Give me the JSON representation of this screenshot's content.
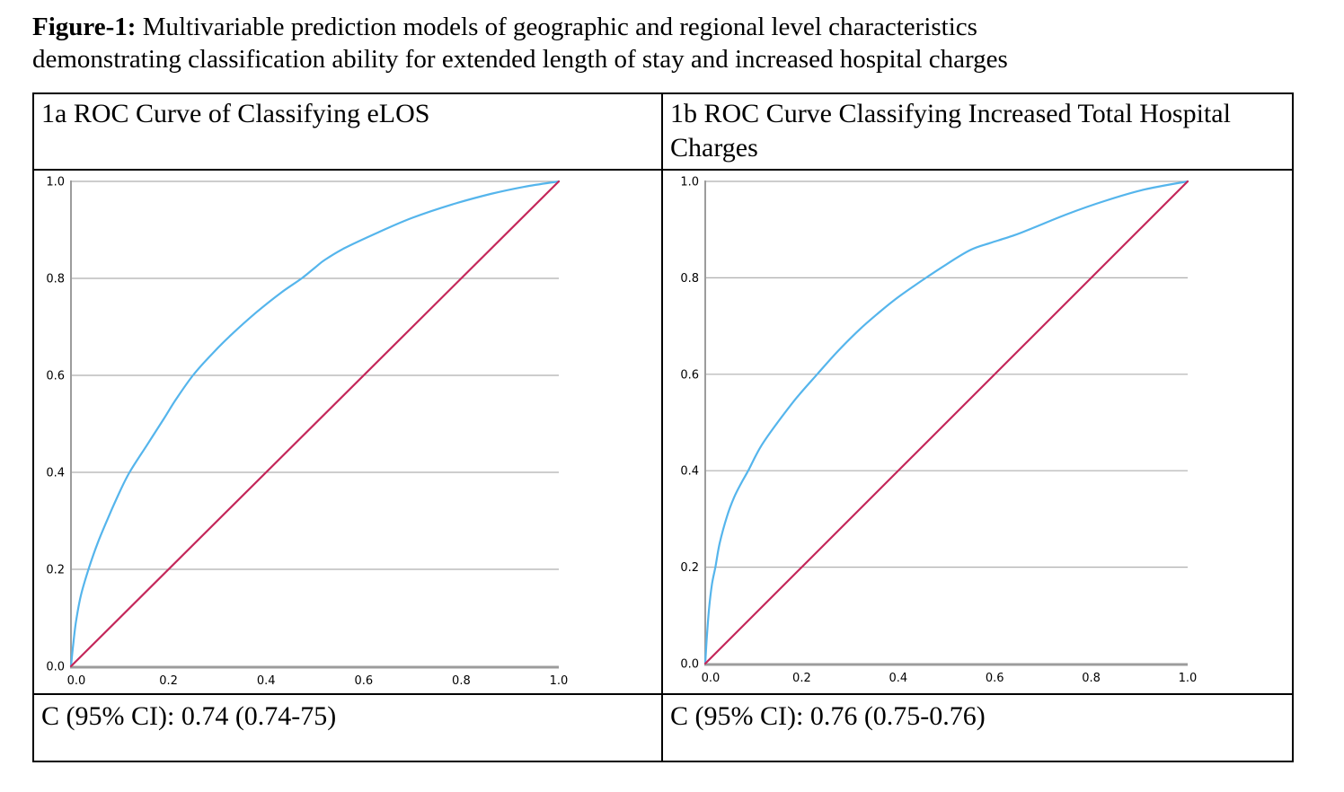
{
  "title": {
    "prefix": "Figure-1:",
    "line1": " Multivariable prediction models of geographic and regional level characteristics",
    "line2": "demonstrating classification ability for extended length of stay and increased hospital charges"
  },
  "panels": [
    {
      "header": "1a ROC Curve of Classifying eLOS",
      "c_statistic": "C (95% CI): 0.74 (0.74-75)"
    },
    {
      "header": "1b ROC Curve Classifying Increased Total Hospital Charges",
      "c_statistic": "C (95% CI): 0.76 (0.75-0.76)"
    }
  ],
  "colors": {
    "roc_curve": "#55B5EC",
    "reference_line": "#C4275A",
    "gridline": "#AFAFAF",
    "axis": "#9C9C9C"
  },
  "chart_data": [
    {
      "type": "line",
      "title": "1a ROC Curve of Classifying eLOS",
      "xlabel": "",
      "ylabel": "",
      "xlim": [
        0,
        1
      ],
      "ylim": [
        0,
        1
      ],
      "xticks": [
        0.0,
        0.2,
        0.4,
        0.6,
        0.8,
        1.0
      ],
      "yticks": [
        0.0,
        0.2,
        0.4,
        0.6,
        0.8,
        1.0
      ],
      "grid": "horizontal",
      "legend": "none",
      "c_statistic_value": "0.74 (0.74-75)",
      "series": [
        {
          "name": "roc-curve",
          "colorKey": "roc_curve",
          "smooth": true,
          "points": [
            [
              0,
              0
            ],
            [
              0.004,
              0.04
            ],
            [
              0.01,
              0.09
            ],
            [
              0.02,
              0.145
            ],
            [
              0.036,
              0.2
            ],
            [
              0.055,
              0.255
            ],
            [
              0.08,
              0.315
            ],
            [
              0.1,
              0.36
            ],
            [
              0.12,
              0.4
            ],
            [
              0.155,
              0.455
            ],
            [
              0.19,
              0.51
            ],
            [
              0.215,
              0.55
            ],
            [
              0.25,
              0.6
            ],
            [
              0.29,
              0.645
            ],
            [
              0.33,
              0.685
            ],
            [
              0.38,
              0.73
            ],
            [
              0.43,
              0.77
            ],
            [
              0.473,
              0.8
            ],
            [
              0.5,
              0.822
            ],
            [
              0.52,
              0.838
            ],
            [
              0.56,
              0.862
            ],
            [
              0.63,
              0.895
            ],
            [
              0.7,
              0.925
            ],
            [
              0.78,
              0.952
            ],
            [
              0.86,
              0.974
            ],
            [
              0.93,
              0.989
            ],
            [
              1,
              1
            ]
          ]
        },
        {
          "name": "reference-line",
          "colorKey": "reference_line",
          "smooth": false,
          "points": [
            [
              0,
              0
            ],
            [
              1,
              1
            ]
          ]
        }
      ]
    },
    {
      "type": "line",
      "title": "1b ROC Curve Classifying Increased Total Hospital Charges",
      "xlabel": "",
      "ylabel": "",
      "xlim": [
        0,
        1
      ],
      "ylim": [
        0,
        1
      ],
      "xticks": [
        0.0,
        0.2,
        0.4,
        0.6,
        0.8,
        1.0
      ],
      "yticks": [
        0.0,
        0.2,
        0.4,
        0.6,
        0.8,
        1.0
      ],
      "grid": "horizontal",
      "legend": "none",
      "c_statistic_value": "0.76 (0.75-0.76)",
      "series": [
        {
          "name": "roc-curve",
          "colorKey": "roc_curve",
          "smooth": true,
          "points": [
            [
              0,
              0
            ],
            [
              0.003,
              0.05
            ],
            [
              0.008,
              0.115
            ],
            [
              0.014,
              0.165
            ],
            [
              0.021,
              0.2
            ],
            [
              0.03,
              0.25
            ],
            [
              0.045,
              0.305
            ],
            [
              0.06,
              0.345
            ],
            [
              0.075,
              0.375
            ],
            [
              0.089,
              0.4
            ],
            [
              0.115,
              0.45
            ],
            [
              0.15,
              0.5
            ],
            [
              0.19,
              0.552
            ],
            [
              0.232,
              0.6
            ],
            [
              0.275,
              0.648
            ],
            [
              0.32,
              0.693
            ],
            [
              0.36,
              0.728
            ],
            [
              0.4,
              0.76
            ],
            [
              0.45,
              0.795
            ],
            [
              0.5,
              0.828
            ],
            [
              0.55,
              0.858
            ],
            [
              0.59,
              0.872
            ],
            [
              0.64,
              0.888
            ],
            [
              0.676,
              0.902
            ],
            [
              0.75,
              0.932
            ],
            [
              0.83,
              0.96
            ],
            [
              0.91,
              0.983
            ],
            [
              1,
              1
            ]
          ]
        },
        {
          "name": "reference-line",
          "colorKey": "reference_line",
          "smooth": false,
          "points": [
            [
              0,
              0
            ],
            [
              1,
              1
            ]
          ]
        }
      ]
    }
  ]
}
